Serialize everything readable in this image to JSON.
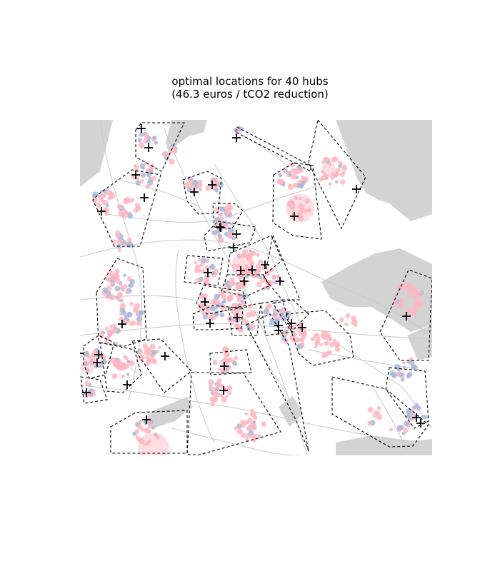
{
  "title": {
    "line1": "optimal locations for 40 hubs",
    "line2": "(46.3 euros / tCO2 reduction)"
  },
  "colors": {
    "water": "#d3d3d3",
    "roads": "#c8c8c8",
    "demand_pink": "#ffb6c1",
    "demand_blue": "#a9b8d8",
    "hub_marker": "#000000",
    "cluster_outline": "#000000"
  },
  "hub_count": 40,
  "cost_per_tco2_reduction_eur": 46.3
}
